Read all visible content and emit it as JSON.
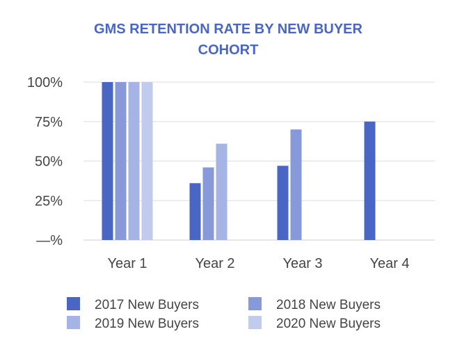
{
  "chart_data": {
    "type": "bar",
    "title_lines": [
      "GMS RETENTION RATE BY NEW BUYER",
      "COHORT"
    ],
    "categories": [
      "Year 1",
      "Year 2",
      "Year 3",
      "Year 4"
    ],
    "y_ticks": [
      {
        "value": 0,
        "label": "—%"
      },
      {
        "value": 25,
        "label": "25%"
      },
      {
        "value": 50,
        "label": "50%"
      },
      {
        "value": 75,
        "label": "75%"
      },
      {
        "value": 100,
        "label": "100%"
      }
    ],
    "ylim": [
      0,
      100
    ],
    "grid": true,
    "legend_position": "bottom",
    "series": [
      {
        "name": "2017 New Buyers",
        "color": "#4a66c4",
        "values": [
          100,
          36,
          47,
          75
        ]
      },
      {
        "name": "2018 New Buyers",
        "color": "#8799d8",
        "values": [
          100,
          46,
          70,
          null
        ]
      },
      {
        "name": "2019 New Buyers",
        "color": "#a5b4e4",
        "values": [
          100,
          61,
          null,
          null
        ]
      },
      {
        "name": "2020 New Buyers",
        "color": "#c0cbed",
        "values": [
          100,
          null,
          null,
          null
        ]
      }
    ],
    "title_color": "#4a66c4",
    "grid_color": "#dddddd"
  }
}
